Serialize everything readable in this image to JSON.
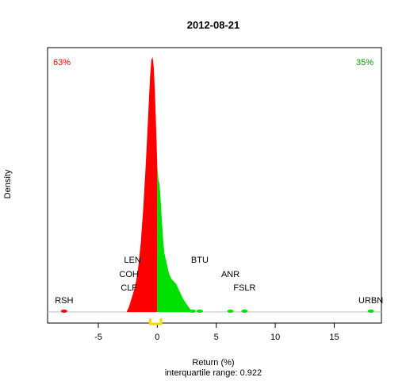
{
  "chart_data": {
    "type": "area",
    "title": "2012-08-21",
    "xlabel": "Return (%)",
    "ylabel": "Density",
    "subtitle": "interquartile range: 0.922",
    "xlim": [
      -9.3,
      19.0
    ],
    "xticks": [
      -5,
      0,
      5,
      10,
      15
    ],
    "xtick_labels": [
      "-5",
      "0",
      "5",
      "10",
      "15"
    ],
    "grid": false,
    "negative_color": "#ff0000",
    "positive_color": "#00e000",
    "baseline_color": "#bebebe",
    "iqr_color": "#ffd700",
    "percent_negative": "63%",
    "percent_positive": "35%",
    "iqr": {
      "low": -0.6,
      "high": 0.322
    },
    "density": {
      "x": [
        -2.6,
        -2.4,
        -2.2,
        -2.0,
        -1.8,
        -1.6,
        -1.4,
        -1.2,
        -1.0,
        -0.8,
        -0.7,
        -0.6,
        -0.5,
        -0.4,
        -0.3,
        -0.2,
        -0.1,
        0.0,
        0.1,
        0.2,
        0.3,
        0.4,
        0.5,
        0.6,
        0.8,
        1.0,
        1.2,
        1.4,
        1.6,
        1.8,
        2.0,
        2.2,
        2.5,
        2.8,
        3.0
      ],
      "y": [
        0.0,
        0.02,
        0.05,
        0.08,
        0.12,
        0.18,
        0.27,
        0.4,
        0.56,
        0.74,
        0.84,
        0.93,
        0.99,
        1.0,
        0.96,
        0.86,
        0.72,
        0.58,
        0.52,
        0.5,
        0.43,
        0.35,
        0.28,
        0.23,
        0.19,
        0.15,
        0.13,
        0.12,
        0.11,
        0.09,
        0.07,
        0.05,
        0.03,
        0.01,
        0.0
      ]
    },
    "outlier_x": [
      -7.9,
      3.0,
      3.6,
      6.2,
      7.4,
      18.1
    ],
    "stocks": [
      {
        "label": "RSH",
        "x": -7.9
      },
      {
        "label": "LEN",
        "x": -2.1
      },
      {
        "label": "COH",
        "x": -2.4
      },
      {
        "label": "CLF",
        "x": -2.4
      },
      {
        "label": "BTU",
        "x": 3.6
      },
      {
        "label": "ANR",
        "x": 6.2
      },
      {
        "label": "FSLR",
        "x": 7.4
      },
      {
        "label": "URBN",
        "x": 18.1
      }
    ]
  }
}
